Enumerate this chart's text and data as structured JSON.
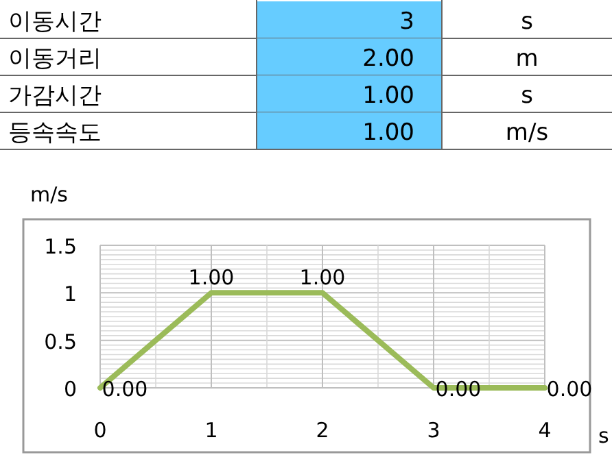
{
  "chart_data": [
    {
      "type": "other",
      "annotations": [
        "이동시간",
        "3",
        "s",
        "이동거리",
        "2.00",
        "m",
        "가감시간",
        "1.00",
        "s",
        "등속속도",
        "1.00",
        "m/s"
      ]
    },
    {
      "type": "line",
      "ylabel": "m/s",
      "xlabel": "s",
      "x": [
        0,
        1,
        2,
        3,
        4
      ],
      "series": [
        {
          "color": "#9bbb59",
          "values": [
            0,
            1,
            1,
            0,
            0
          ],
          "value_labels": [
            "0.00",
            "1.00",
            "1.00",
            "0.00",
            "0.00"
          ]
        }
      ],
      "xlim": [
        0,
        4
      ],
      "xticks": [
        0,
        1,
        2,
        3,
        4
      ],
      "ylim": [
        0,
        1.5
      ],
      "yticks": [
        0,
        0.5,
        1,
        1.5
      ],
      "grid": true,
      "marker": "none",
      "line_style": "solid"
    }
  ]
}
